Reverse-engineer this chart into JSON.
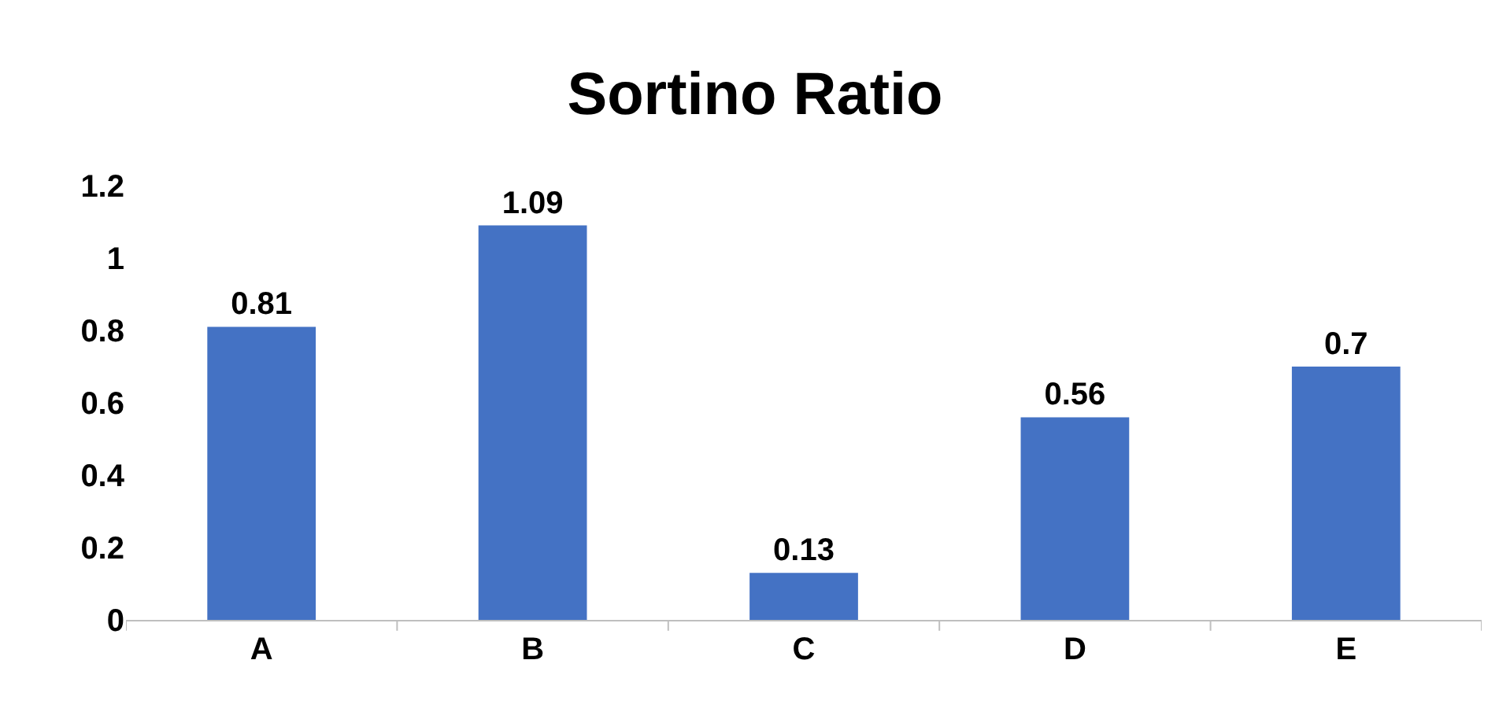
{
  "chart_data": {
    "type": "bar",
    "title": "Sortino Ratio",
    "categories": [
      "A",
      "B",
      "C",
      "D",
      "E"
    ],
    "values": [
      0.81,
      1.09,
      0.13,
      0.56,
      0.7
    ],
    "color": "#4472c4",
    "ylim": [
      0,
      1.2
    ],
    "yticks": [
      0,
      0.2,
      0.4,
      0.6,
      0.8,
      1,
      1.2
    ],
    "data_labels": true
  }
}
